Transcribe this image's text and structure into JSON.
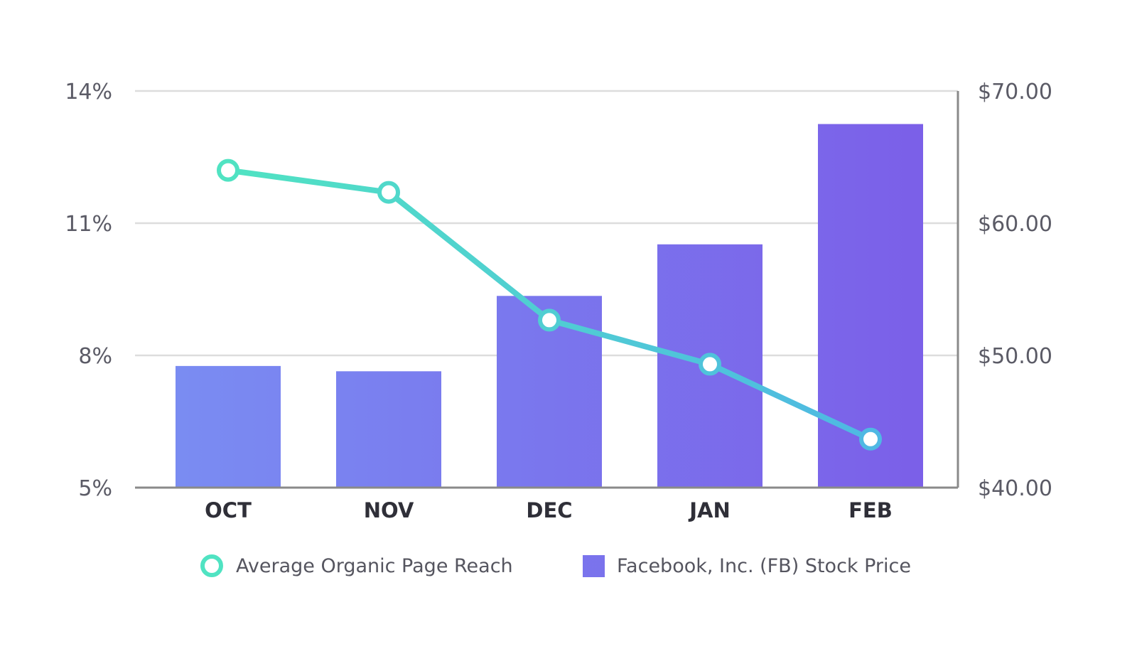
{
  "chart_data": {
    "type": "bar",
    "title": "",
    "categories": [
      "OCT",
      "NOV",
      "DEC",
      "JAN",
      "FEB"
    ],
    "series": [
      {
        "name": "Facebook, Inc. (FB) Stock Price",
        "type": "bar",
        "axis": "right",
        "values": [
          49.2,
          48.8,
          54.5,
          58.4,
          67.5
        ]
      },
      {
        "name": "Average Organic Page Reach",
        "type": "line",
        "axis": "left",
        "values": [
          12.2,
          11.7,
          8.8,
          7.8,
          6.1
        ]
      }
    ],
    "left_axis": {
      "ylim": [
        5,
        14
      ],
      "ticks": [
        5,
        8,
        11,
        14
      ],
      "tick_labels": [
        "5%",
        "8%",
        "11%",
        "14%"
      ]
    },
    "right_axis": {
      "ylim": [
        40,
        70
      ],
      "ticks": [
        40,
        50,
        60,
        70
      ],
      "tick_labels": [
        "$40.00",
        "$50.00",
        "$60.00",
        "$70.00"
      ]
    },
    "xlabel": "",
    "ylabel": "",
    "grid": true,
    "legend": {
      "position": "bottom",
      "entries": [
        {
          "label": "Average Organic Page Reach",
          "marker": "circle"
        },
        {
          "label": "Facebook, Inc. (FB) Stock Price",
          "marker": "square"
        }
      ]
    }
  },
  "colors": {
    "bar_start": "#7a8cf2",
    "bar_end": "#7b5ee8",
    "line_start": "#50e3c2",
    "line_end": "#4fb7e4",
    "grid": "#dddddd",
    "axis": "#8a8a8a"
  }
}
